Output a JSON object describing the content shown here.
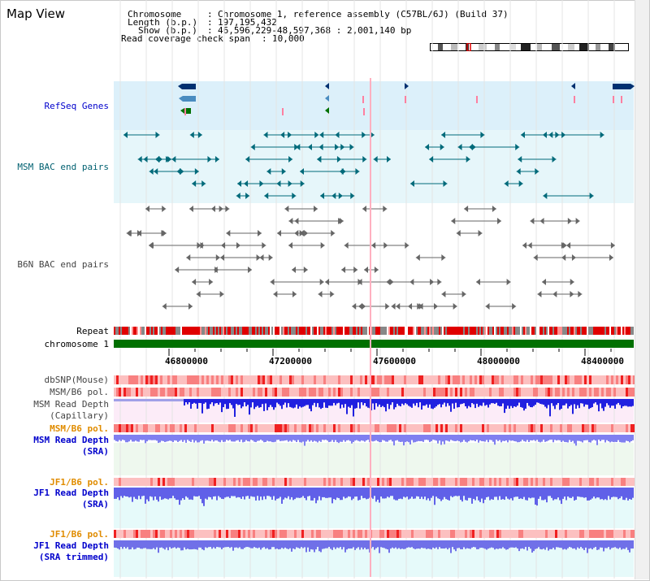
{
  "panel": {
    "title": "Map View"
  },
  "header": {
    "chromosome_label": "Chromosome",
    "chromosome_value": "Chromosome 1, reference assembly (C57BL/6J) (Build 37)",
    "length_label": "Length (b.p.)",
    "length_value": "197,195,432",
    "show_label": "Show (b.p.)",
    "show_value": "46,596,229-48,597,368 : 2,001,140 bp",
    "coverage_label": "Read coverage check span",
    "coverage_value": "10,000"
  },
  "tracks": {
    "refseq": "RefSeq Genes",
    "msm_bac": "MSM BAC end pairs",
    "b6n_bac": "B6N BAC end pairs",
    "repeat": "Repeat",
    "chromosome": "chromosome 1",
    "dbsnp": "dbSNP(Mouse)",
    "msm_b6_pol_1": "MSM/B6 pol.",
    "msm_depth_cap_1": "MSM Read Depth",
    "msm_depth_cap_2": "(Capillary)",
    "msm_b6_pol_2": "MSM/B6 pol.",
    "msm_depth_sra_1": "MSM Read Depth",
    "msm_depth_sra_2": "(SRA)",
    "jf1_b6_pol_1": "JF1/B6 pol.",
    "jf1_depth_sra_1": "JF1 Read Depth",
    "jf1_depth_sra_2": "(SRA)",
    "jf1_b6_pol_2": "JF1/B6 pol.",
    "jf1_depth_trim_1": "JF1 Read Depth",
    "jf1_depth_trim_2": "(SRA trimmed)"
  },
  "axis": {
    "ticks": [
      "46800000",
      "47200000",
      "47600000",
      "48000000",
      "48400000"
    ]
  },
  "colors": {
    "refseq_bg": "#dcf0fa",
    "msm_bg": "#e6f6fa",
    "chromosome_bar": "#007000",
    "label_blue": "#0000cc",
    "label_teal": "#006070",
    "label_orange": "#e08c00",
    "label_gray": "#444444"
  }
}
